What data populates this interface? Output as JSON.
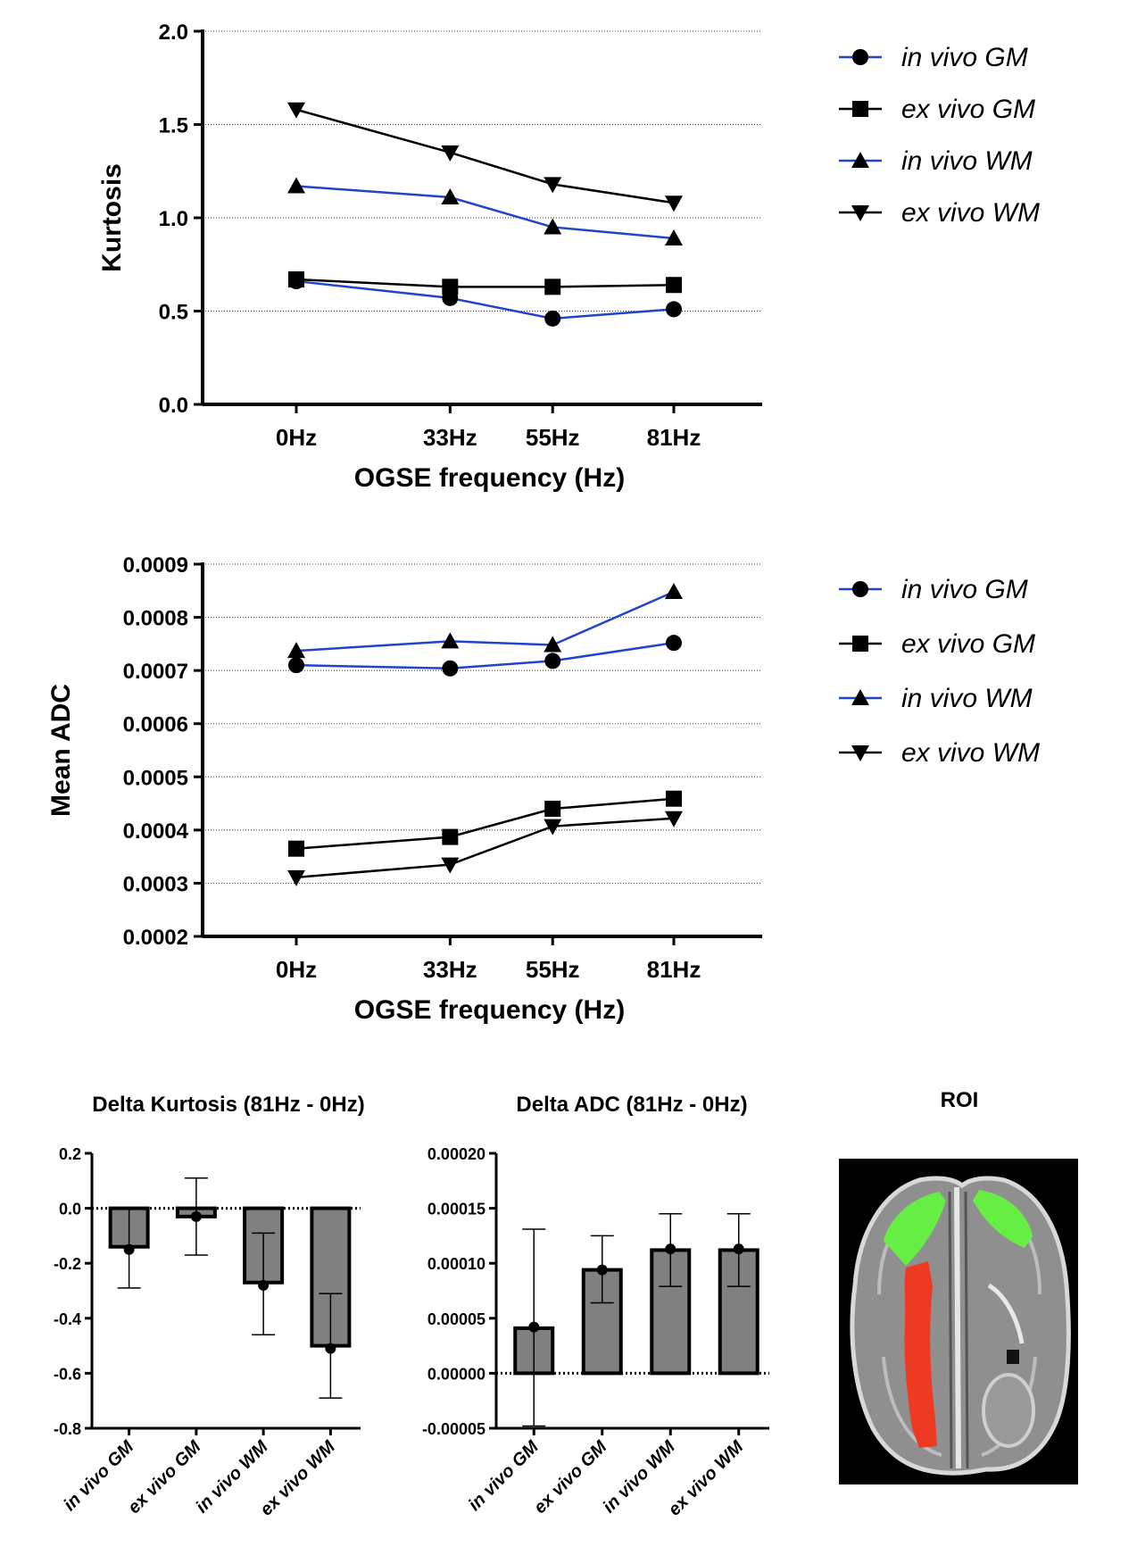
{
  "chart_data": [
    {
      "type": "line",
      "ylabel": "Kurtosis",
      "xlabel": "OGSE frequency (Hz)",
      "x": [
        0,
        33,
        55,
        81
      ],
      "tick_labels": [
        "0Hz",
        "33Hz",
        "55Hz",
        "81Hz"
      ],
      "ylim": [
        0.0,
        2.0
      ],
      "yticks": [
        "0.0",
        "0.5",
        "1.0",
        "1.5",
        "2.0"
      ],
      "grid": "horizontal dotted",
      "legend_position": "right",
      "series": [
        {
          "name": "in vivo GM",
          "color": "#2244cc",
          "marker": "circle",
          "values": [
            0.66,
            0.57,
            0.46,
            0.51
          ]
        },
        {
          "name": "ex vivo GM",
          "color": "#000000",
          "marker": "square",
          "values": [
            0.67,
            0.63,
            0.63,
            0.64
          ]
        },
        {
          "name": "in vivo WM",
          "color": "#2244cc",
          "marker": "triangle-up",
          "values": [
            1.17,
            1.11,
            0.95,
            0.89
          ]
        },
        {
          "name": "ex vivo WM",
          "color": "#000000",
          "marker": "triangle-down",
          "values": [
            1.58,
            1.35,
            1.18,
            1.08
          ]
        }
      ]
    },
    {
      "type": "line",
      "ylabel": "Mean ADC",
      "xlabel": "OGSE frequency (Hz)",
      "x": [
        0,
        33,
        55,
        81
      ],
      "tick_labels": [
        "0Hz",
        "33Hz",
        "55Hz",
        "81Hz"
      ],
      "ylim": [
        0.0002,
        0.0009
      ],
      "yticks": [
        "0.0002",
        "0.0003",
        "0.0004",
        "0.0005",
        "0.0006",
        "0.0007",
        "0.0008",
        "0.0009"
      ],
      "grid": "horizontal dotted",
      "legend_position": "right",
      "series": [
        {
          "name": "in vivo GM",
          "color": "#2244cc",
          "marker": "circle",
          "values": [
            0.00071,
            0.000704,
            0.000718,
            0.000752
          ]
        },
        {
          "name": "ex vivo GM",
          "color": "#000000",
          "marker": "square",
          "values": [
            0.000365,
            0.000387,
            0.00044,
            0.000459
          ]
        },
        {
          "name": "in vivo WM",
          "color": "#2244cc",
          "marker": "triangle-up",
          "values": [
            0.000737,
            0.000755,
            0.000748,
            0.000848
          ]
        },
        {
          "name": "ex vivo WM",
          "color": "#000000",
          "marker": "triangle-down",
          "values": [
            0.000311,
            0.000335,
            0.000407,
            0.000422
          ]
        }
      ]
    },
    {
      "type": "bar",
      "title": "Delta Kurtosis (81Hz - 0Hz)",
      "categories": [
        "in vivo GM",
        "ex vivo GM",
        "in vivo WM",
        "ex vivo WM"
      ],
      "values": [
        -0.14,
        -0.03,
        -0.27,
        -0.5
      ],
      "points": [
        -0.15,
        -0.03,
        -0.28,
        -0.51
      ],
      "err_upper": [
        0.0,
        0.11,
        -0.09,
        -0.31
      ],
      "err_lower": [
        -0.29,
        -0.17,
        -0.46,
        -0.69
      ],
      "ylim": [
        -0.8,
        0.2
      ],
      "yticks": [
        "0.2",
        "0.0",
        "-0.2",
        "-0.4",
        "-0.6",
        "-0.8"
      ]
    },
    {
      "type": "bar",
      "title": "Delta ADC (81Hz - 0Hz)",
      "categories": [
        "in vivo GM",
        "ex vivo GM",
        "in vivo WM",
        "ex vivo WM"
      ],
      "values": [
        4.1e-05,
        9.4e-05,
        0.000112,
        0.000112
      ],
      "points": [
        4.2e-05,
        9.4e-05,
        0.000113,
        0.000113
      ],
      "err_upper": [
        0.000131,
        0.000125,
        0.000145,
        0.000145
      ],
      "err_lower": [
        -4.8e-05,
        6.4e-05,
        7.9e-05,
        7.9e-05
      ],
      "ylim": [
        -5e-05,
        0.0002
      ],
      "yticks": [
        "0.00020",
        "0.00015",
        "0.00010",
        "0.00005",
        "0.00000",
        "-0.00005"
      ]
    }
  ],
  "roi": {
    "title": "ROI",
    "colors": {
      "background": "#000000",
      "brain": "#8a8a8a",
      "frontal_roi": "#66ee44",
      "wm_roi": "#ee3a22"
    }
  }
}
